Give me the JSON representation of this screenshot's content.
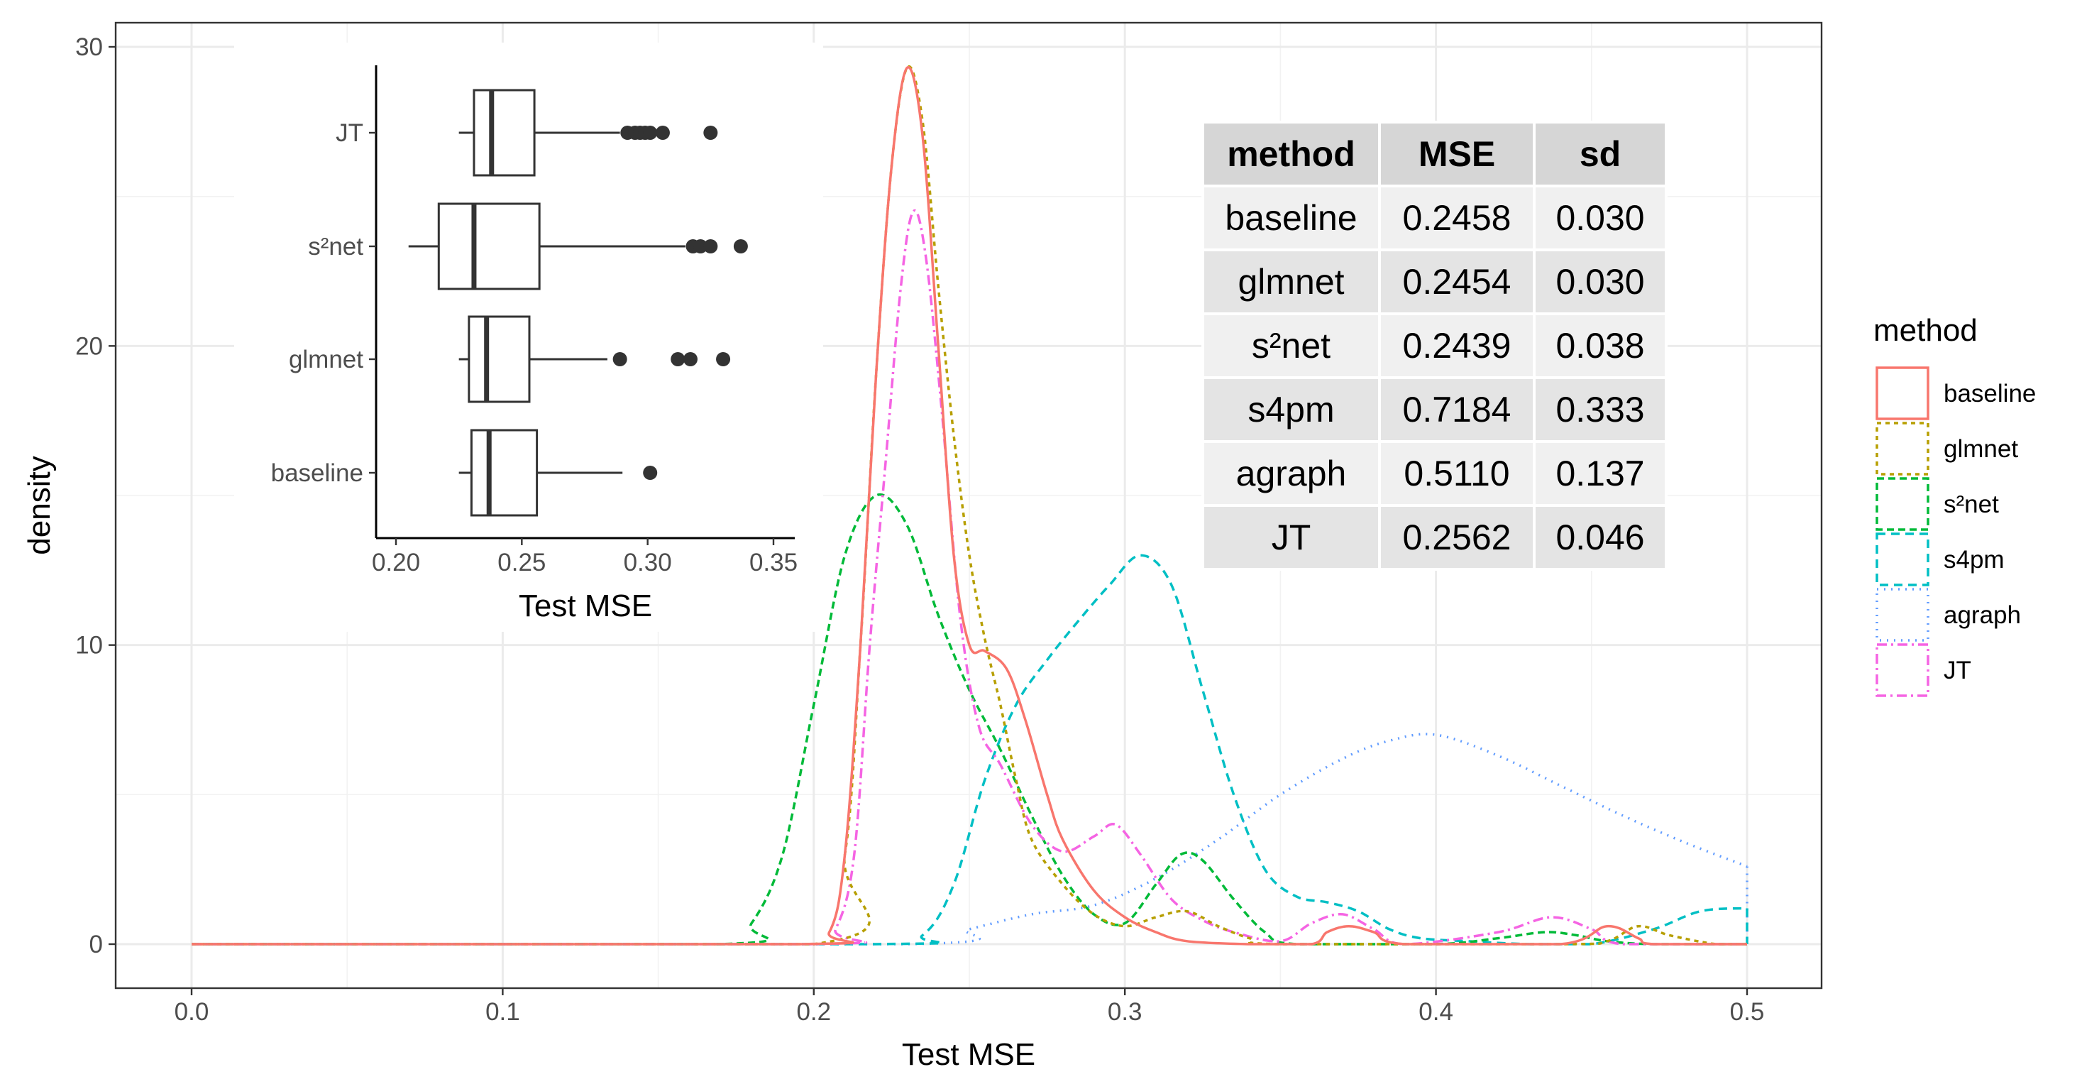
{
  "chart_data": [
    {
      "type": "density",
      "name": "main-density-plot",
      "xlabel": "Test MSE",
      "ylabel": "density",
      "xlim": [
        0.0,
        0.5
      ],
      "ylim": [
        0,
        30
      ],
      "x_ticks": [
        "0.0",
        "0.1",
        "0.2",
        "0.3",
        "0.4",
        "0.5"
      ],
      "y_ticks": [
        "0",
        "10",
        "20",
        "30"
      ],
      "grid": true,
      "legend": {
        "title": "method",
        "position": "right",
        "items": [
          "baseline",
          "glmnet",
          "s²net",
          "s4pm",
          "agraph",
          "JT"
        ]
      },
      "series": [
        {
          "name": "baseline",
          "color": "#F8766D",
          "dash": "solid",
          "points": [
            [
              0.0,
              0
            ],
            [
              0.195,
              0
            ],
            [
              0.205,
              0.4
            ],
            [
              0.21,
              3
            ],
            [
              0.215,
              10
            ],
            [
              0.22,
              19
            ],
            [
              0.225,
              26
            ],
            [
              0.23,
              29.3
            ],
            [
              0.235,
              27
            ],
            [
              0.24,
              20
            ],
            [
              0.245,
              13
            ],
            [
              0.25,
              10
            ],
            [
              0.255,
              9.8
            ],
            [
              0.262,
              9.2
            ],
            [
              0.268,
              7.5
            ],
            [
              0.275,
              5
            ],
            [
              0.28,
              3.5
            ],
            [
              0.29,
              1.8
            ],
            [
              0.3,
              0.9
            ],
            [
              0.31,
              0.4
            ],
            [
              0.32,
              0.1
            ],
            [
              0.34,
              0
            ],
            [
              0.36,
              0
            ],
            [
              0.365,
              0.4
            ],
            [
              0.372,
              0.6
            ],
            [
              0.38,
              0.4
            ],
            [
              0.39,
              0
            ],
            [
              0.44,
              0
            ],
            [
              0.455,
              0.6
            ],
            [
              0.465,
              0.2
            ],
            [
              0.47,
              0
            ],
            [
              0.5,
              0
            ]
          ]
        },
        {
          "name": "glmnet",
          "color": "#B79F00",
          "dash": "6,6",
          "points": [
            [
              0.0,
              0
            ],
            [
              0.2,
              0
            ],
            [
              0.21,
              3
            ],
            [
              0.215,
              10
            ],
            [
              0.22,
              19
            ],
            [
              0.225,
              26
            ],
            [
              0.23,
              29.3
            ],
            [
              0.235,
              27.5
            ],
            [
              0.24,
              22
            ],
            [
              0.245,
              17
            ],
            [
              0.25,
              13
            ],
            [
              0.255,
              10.2
            ],
            [
              0.26,
              8
            ],
            [
              0.265,
              5.5
            ],
            [
              0.27,
              3.5
            ],
            [
              0.28,
              2
            ],
            [
              0.29,
              1
            ],
            [
              0.3,
              0.6
            ],
            [
              0.31,
              0.9
            ],
            [
              0.32,
              1.1
            ],
            [
              0.33,
              0.6
            ],
            [
              0.34,
              0.2
            ],
            [
              0.35,
              0
            ],
            [
              0.44,
              0
            ],
            [
              0.455,
              0.1
            ],
            [
              0.465,
              0.6
            ],
            [
              0.475,
              0.3
            ],
            [
              0.49,
              0
            ],
            [
              0.5,
              0
            ]
          ]
        },
        {
          "name": "s²net",
          "color": "#00BA38",
          "dash": "10,6",
          "points": [
            [
              0.0,
              0
            ],
            [
              0.17,
              0
            ],
            [
              0.18,
              0.7
            ],
            [
              0.19,
              3
            ],
            [
              0.2,
              8
            ],
            [
              0.21,
              13
            ],
            [
              0.22,
              15
            ],
            [
              0.23,
              14
            ],
            [
              0.24,
              11
            ],
            [
              0.25,
              8.5
            ],
            [
              0.26,
              6.5
            ],
            [
              0.27,
              4.3
            ],
            [
              0.28,
              2.3
            ],
            [
              0.29,
              1
            ],
            [
              0.3,
              0.7
            ],
            [
              0.31,
              2
            ],
            [
              0.318,
              3
            ],
            [
              0.325,
              2.8
            ],
            [
              0.335,
              1.5
            ],
            [
              0.345,
              0.4
            ],
            [
              0.355,
              0
            ],
            [
              0.4,
              0
            ],
            [
              0.42,
              0.2
            ],
            [
              0.435,
              0.4
            ],
            [
              0.445,
              0.3
            ],
            [
              0.455,
              0.1
            ],
            [
              0.47,
              0
            ],
            [
              0.5,
              0
            ]
          ]
        },
        {
          "name": "s4pm",
          "color": "#00BFC4",
          "dash": "12,8",
          "points": [
            [
              0.0,
              0
            ],
            [
              0.22,
              0
            ],
            [
              0.235,
              0.3
            ],
            [
              0.245,
              2
            ],
            [
              0.255,
              5.5
            ],
            [
              0.265,
              8
            ],
            [
              0.275,
              9.5
            ],
            [
              0.285,
              10.8
            ],
            [
              0.295,
              12
            ],
            [
              0.305,
              13
            ],
            [
              0.315,
              12
            ],
            [
              0.325,
              8.5
            ],
            [
              0.335,
              5
            ],
            [
              0.345,
              2.5
            ],
            [
              0.355,
              1.6
            ],
            [
              0.365,
              1.4
            ],
            [
              0.375,
              1.1
            ],
            [
              0.385,
              0.5
            ],
            [
              0.395,
              0.2
            ],
            [
              0.41,
              0.1
            ],
            [
              0.43,
              0
            ],
            [
              0.45,
              0
            ],
            [
              0.47,
              0.5
            ],
            [
              0.485,
              1.1
            ],
            [
              0.5,
              1.2
            ]
          ]
        },
        {
          "name": "agraph",
          "color": "#619CFF",
          "dash": "2,8",
          "points": [
            [
              0.0,
              0
            ],
            [
              0.23,
              0
            ],
            [
              0.25,
              0.5
            ],
            [
              0.27,
              1
            ],
            [
              0.29,
              1.3
            ],
            [
              0.31,
              2.2
            ],
            [
              0.33,
              3.5
            ],
            [
              0.35,
              5
            ],
            [
              0.37,
              6.2
            ],
            [
              0.385,
              6.8
            ],
            [
              0.4,
              7
            ],
            [
              0.42,
              6.3
            ],
            [
              0.44,
              5.3
            ],
            [
              0.46,
              4.3
            ],
            [
              0.48,
              3.4
            ],
            [
              0.5,
              2.6
            ]
          ]
        },
        {
          "name": "JT",
          "color": "#F564E3",
          "dash": "14,6,3,6",
          "points": [
            [
              0.0,
              0
            ],
            [
              0.2,
              0
            ],
            [
              0.207,
              0.5
            ],
            [
              0.213,
              3
            ],
            [
              0.218,
              10
            ],
            [
              0.223,
              16
            ],
            [
              0.228,
              22
            ],
            [
              0.232,
              24.5
            ],
            [
              0.236,
              23
            ],
            [
              0.241,
              18
            ],
            [
              0.247,
              11
            ],
            [
              0.253,
              7.3
            ],
            [
              0.26,
              6
            ],
            [
              0.27,
              4
            ],
            [
              0.28,
              3.1
            ],
            [
              0.29,
              3.6
            ],
            [
              0.297,
              4
            ],
            [
              0.305,
              3
            ],
            [
              0.315,
              1.5
            ],
            [
              0.325,
              0.8
            ],
            [
              0.335,
              0.4
            ],
            [
              0.35,
              0.1
            ],
            [
              0.36,
              0.7
            ],
            [
              0.37,
              1
            ],
            [
              0.38,
              0.5
            ],
            [
              0.39,
              0
            ],
            [
              0.42,
              0.4
            ],
            [
              0.437,
              0.9
            ],
            [
              0.45,
              0.5
            ],
            [
              0.46,
              0
            ],
            [
              0.5,
              0
            ]
          ]
        }
      ]
    },
    {
      "type": "boxplot",
      "name": "inset-boxplot",
      "orientation": "horizontal",
      "xlabel": "Test MSE",
      "xlim": [
        0.195,
        0.355
      ],
      "x_ticks": [
        "0.20",
        "0.25",
        "0.30",
        "0.35"
      ],
      "categories": [
        "baseline",
        "glmnet",
        "s²net",
        "JT"
      ],
      "boxes": [
        {
          "label": "baseline",
          "whisker_low": 0.225,
          "q1": 0.23,
          "median": 0.237,
          "q3": 0.256,
          "whisker_high": 0.29,
          "outliers": [
            0.301
          ]
        },
        {
          "label": "glmnet",
          "whisker_low": 0.225,
          "q1": 0.229,
          "median": 0.236,
          "q3": 0.253,
          "whisker_high": 0.284,
          "outliers": [
            0.289,
            0.312,
            0.317,
            0.33
          ]
        },
        {
          "label": "s²net",
          "whisker_low": 0.205,
          "q1": 0.217,
          "median": 0.231,
          "q3": 0.257,
          "whisker_high": 0.315,
          "outliers": [
            0.318,
            0.321,
            0.325,
            0.337
          ]
        },
        {
          "label": "JT",
          "whisker_low": 0.225,
          "q1": 0.231,
          "median": 0.238,
          "q3": 0.255,
          "whisker_high": 0.289,
          "outliers": [
            0.292,
            0.295,
            0.297,
            0.299,
            0.301,
            0.306,
            0.325
          ]
        }
      ]
    },
    {
      "type": "table",
      "name": "summary-table",
      "columns": [
        "method",
        "MSE",
        "sd"
      ],
      "rows": [
        [
          "baseline",
          "0.2458",
          "0.030"
        ],
        [
          "glmnet",
          "0.2454",
          "0.030"
        ],
        [
          "s²net",
          "0.2439",
          "0.038"
        ],
        [
          "s4pm",
          "0.7184",
          "0.333"
        ],
        [
          "agraph",
          "0.5110",
          "0.137"
        ],
        [
          "JT",
          "0.2562",
          "0.046"
        ]
      ]
    }
  ]
}
